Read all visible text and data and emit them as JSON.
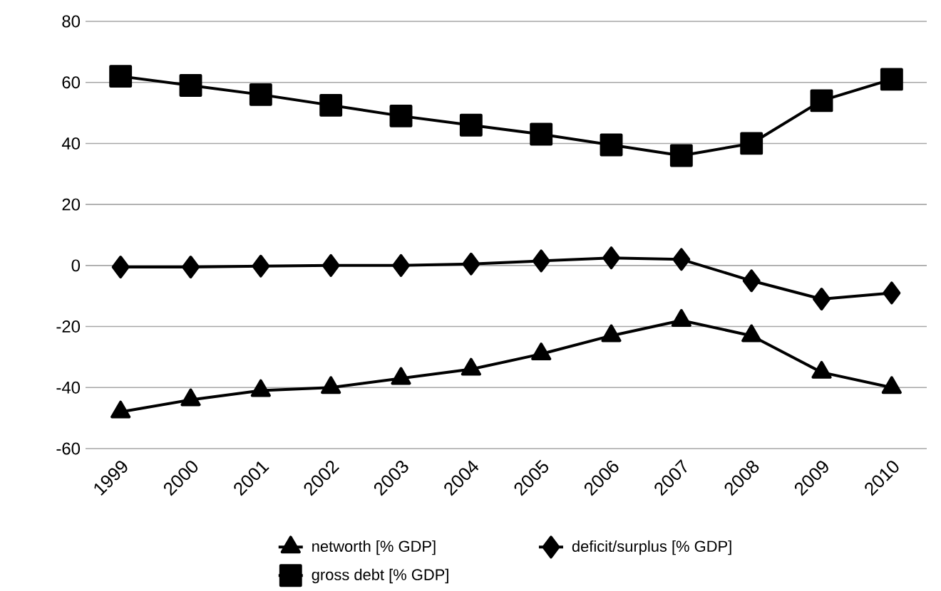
{
  "chart_data": {
    "type": "line",
    "categories": [
      "1999",
      "2000",
      "2001",
      "2002",
      "2003",
      "2004",
      "2005",
      "2006",
      "2007",
      "2008",
      "2009",
      "2010"
    ],
    "series": [
      {
        "name": "networth [% GDP]",
        "color": "#000000",
        "marker": "triangle",
        "values": [
          -48,
          -44,
          -41,
          -40,
          -37,
          -34,
          -29,
          -23,
          -18,
          -23,
          -35,
          -40
        ]
      },
      {
        "name": "deficit/surplus [% GDP]",
        "color": "#000000",
        "marker": "diamond",
        "values": [
          -0.5,
          -0.5,
          -0.2,
          0,
          0,
          0.5,
          1.5,
          2.5,
          2,
          -5,
          -11,
          -9
        ]
      },
      {
        "name": "gross debt [% GDP]",
        "color": "#000000",
        "marker": "square",
        "values": [
          62,
          59,
          56,
          52.5,
          49,
          46,
          43,
          39.5,
          36,
          40,
          54,
          61
        ]
      }
    ],
    "ylim": [
      -60,
      80
    ],
    "yticks": [
      -60,
      -40,
      -20,
      0,
      20,
      40,
      60,
      80
    ],
    "grid": "y",
    "legend": "bottom",
    "line_style": "solid"
  }
}
